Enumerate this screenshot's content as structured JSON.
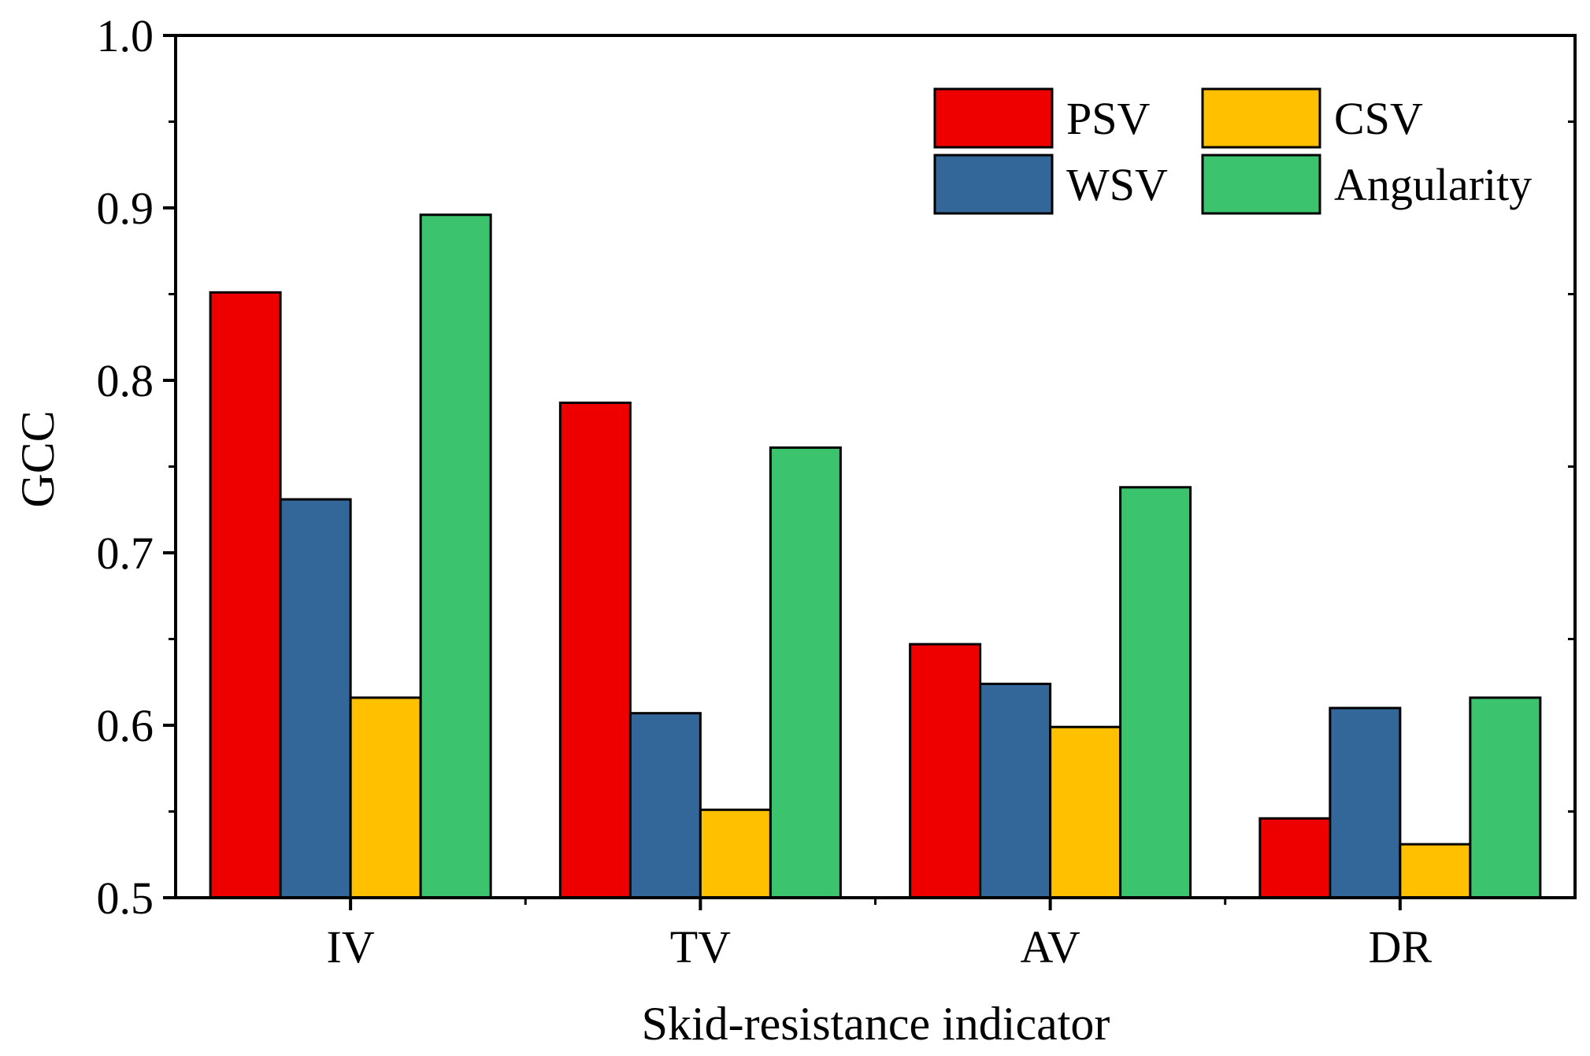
{
  "chart_data": {
    "type": "bar",
    "title": "",
    "xlabel": "Skid-resistance indicator",
    "ylabel": "GCC",
    "ylim": [
      0.5,
      1.0
    ],
    "yticks": [
      0.5,
      0.6,
      0.7,
      0.8,
      0.9,
      1.0
    ],
    "ytick_labels": [
      "0.5",
      "0.6",
      "0.7",
      "0.8",
      "0.9",
      "1.0"
    ],
    "categories": [
      "IV",
      "TV",
      "AV",
      "DR"
    ],
    "series": [
      {
        "name": "PSV",
        "color": "#ee0000",
        "values": [
          0.851,
          0.787,
          0.647,
          0.546
        ]
      },
      {
        "name": "WSV",
        "color": "#336699",
        "values": [
          0.731,
          0.607,
          0.624,
          0.61
        ]
      },
      {
        "name": "CSV",
        "color": "#ffc000",
        "values": [
          0.616,
          0.551,
          0.599,
          0.531
        ]
      },
      {
        "name": "Angularity",
        "color": "#3cc36e",
        "values": [
          0.896,
          0.761,
          0.738,
          0.616
        ]
      }
    ],
    "legend": {
      "position": "top-right",
      "columns": 2
    },
    "grid": false
  }
}
